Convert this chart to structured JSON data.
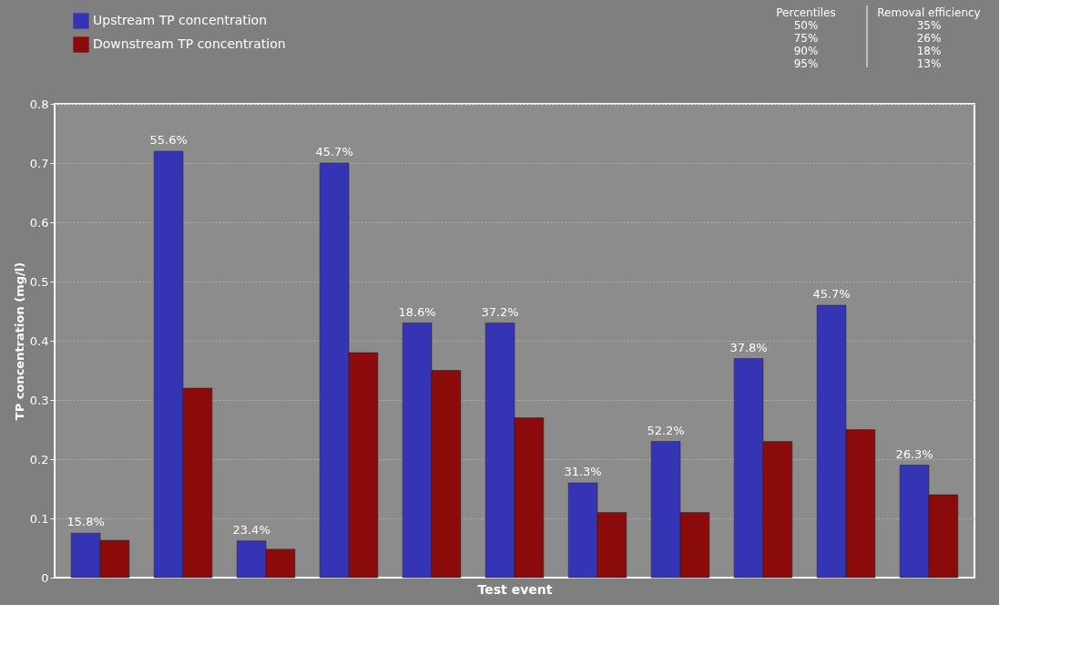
{
  "chart_data": {
    "type": "bar",
    "xlabel": "Test event",
    "ylabel": "TP concentration (mg/l)",
    "categories": [
      null,
      null,
      null,
      null,
      null,
      null,
      null,
      null,
      null,
      null,
      null
    ],
    "series": [
      {
        "name": "Upstream TP concentration",
        "color": "#3434b4",
        "values": [
          0.075,
          0.72,
          0.062,
          0.7,
          0.43,
          0.43,
          0.16,
          0.23,
          0.37,
          0.46,
          0.19
        ]
      },
      {
        "name": "Downstream TP concentration",
        "color": "#8b0a0a",
        "values": [
          0.063,
          0.32,
          0.048,
          0.38,
          0.35,
          0.27,
          0.11,
          0.11,
          0.23,
          0.25,
          0.14
        ]
      }
    ],
    "ylim": [
      0,
      0.8
    ],
    "yticks": [
      0,
      0.1,
      0.2,
      0.3,
      0.4,
      0.5,
      0.6,
      0.7,
      0.8
    ],
    "grid": "y",
    "legend": "top left",
    "annotations": [
      "Percentiles",
      "Removal efficiency",
      "50%",
      "35%",
      "75%",
      "26%",
      "90%",
      "18%",
      "95%",
      "13%",
      {
        "text": "15.8%",
        "y": 0.075
      },
      {
        "text": "55.6%",
        "y": 0.72
      },
      {
        "text": "23.4%",
        "y": 0.062
      },
      {
        "text": "45.7%",
        "y": 0.7
      },
      {
        "text": "18.6%",
        "y": 0.43
      },
      {
        "text": "37.2%",
        "y": 0.43
      },
      {
        "text": "31.3%",
        "y": 0.16
      },
      {
        "text": "52.2%",
        "y": 0.23
      },
      {
        "text": "37.8%",
        "y": 0.37
      },
      {
        "text": "45.7%",
        "y": 0.46
      },
      {
        "text": "26.3%",
        "y": 0.19
      }
    ]
  }
}
